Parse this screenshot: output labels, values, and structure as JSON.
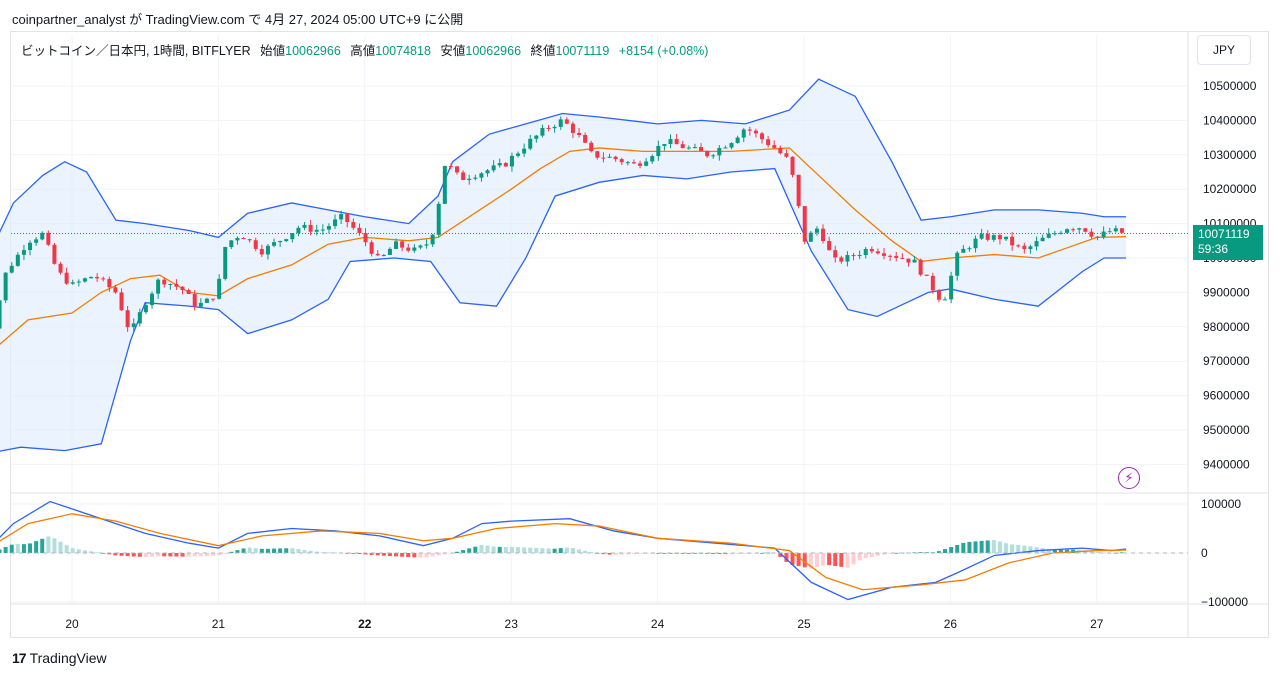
{
  "header": {
    "caption": "coinpartner_analyst が TradingView.com で 4月 27, 2024 05:00 UTC+9 に公開"
  },
  "legend": {
    "symbol": "ビットコイン／日本円, 1時間, BITFLYER",
    "open_label": "始値",
    "open": "10062966",
    "high_label": "高値",
    "high": "10074818",
    "low_label": "安値",
    "low": "10062966",
    "close_label": "終値",
    "close": "10071119",
    "change": "+8154 (+0.08%)"
  },
  "currency_button": "JPY",
  "price_label": {
    "price": "10071119",
    "countdown": "59:36"
  },
  "brand": {
    "logo": "17",
    "name": "TradingView"
  },
  "colors": {
    "up": "#089981",
    "down": "#f23645",
    "band": "#2962ff",
    "basis": "#f57c00",
    "band_fill": "#e3effd"
  },
  "icons": {
    "alert": "lightning-icon"
  },
  "chart_data": [
    {
      "type": "candlestick",
      "title": "ビットコイン／日本円, 1時間, BITFLYER",
      "x_tick_labels": [
        "20",
        "21",
        "22",
        "23",
        "24",
        "25",
        "26",
        "27"
      ],
      "x_tick_bold": [
        "22"
      ],
      "y_ticks": [
        9400000,
        9500000,
        9600000,
        9700000,
        9800000,
        9900000,
        10000000,
        10100000,
        10200000,
        10300000,
        10400000,
        10500000
      ],
      "ylim": [
        9350000,
        10560000
      ],
      "last_price": 10071119,
      "close_path": [
        [
          19.4,
          9580000
        ],
        [
          19.45,
          9780000
        ],
        [
          19.55,
          9960000
        ],
        [
          19.7,
          10050000
        ],
        [
          19.8,
          10070000
        ],
        [
          19.9,
          9960000
        ],
        [
          20.0,
          9920000
        ],
        [
          20.15,
          9950000
        ],
        [
          20.3,
          9900000
        ],
        [
          20.4,
          9780000
        ],
        [
          20.5,
          9870000
        ],
        [
          20.6,
          9940000
        ],
        [
          20.75,
          9910000
        ],
        [
          20.85,
          9860000
        ],
        [
          20.95,
          9880000
        ],
        [
          21.0,
          9920000
        ],
        [
          21.05,
          10040000
        ],
        [
          21.15,
          10070000
        ],
        [
          21.3,
          10020000
        ],
        [
          21.45,
          10060000
        ],
        [
          21.55,
          10090000
        ],
        [
          21.7,
          10080000
        ],
        [
          21.85,
          10120000
        ],
        [
          22.0,
          10050000
        ],
        [
          22.1,
          9990000
        ],
        [
          22.2,
          10040000
        ],
        [
          22.35,
          10020000
        ],
        [
          22.45,
          10050000
        ],
        [
          22.5,
          10150000
        ],
        [
          22.55,
          10280000
        ],
        [
          22.65,
          10230000
        ],
        [
          22.8,
          10250000
        ],
        [
          22.95,
          10270000
        ],
        [
          23.1,
          10330000
        ],
        [
          23.25,
          10380000
        ],
        [
          23.35,
          10400000
        ],
        [
          23.45,
          10360000
        ],
        [
          23.55,
          10300000
        ],
        [
          23.7,
          10290000
        ],
        [
          23.85,
          10270000
        ],
        [
          23.95,
          10300000
        ],
        [
          24.05,
          10340000
        ],
        [
          24.2,
          10320000
        ],
        [
          24.35,
          10300000
        ],
        [
          24.5,
          10340000
        ],
        [
          24.6,
          10380000
        ],
        [
          24.7,
          10350000
        ],
        [
          24.8,
          10320000
        ],
        [
          24.9,
          10280000
        ],
        [
          24.95,
          10180000
        ],
        [
          25.0,
          10050000
        ],
        [
          25.1,
          10090000
        ],
        [
          25.2,
          9990000
        ],
        [
          25.3,
          10000000
        ],
        [
          25.45,
          10030000
        ],
        [
          25.6,
          10010000
        ],
        [
          25.75,
          9990000
        ],
        [
          25.85,
          9930000
        ],
        [
          25.95,
          9870000
        ],
        [
          26.05,
          10010000
        ],
        [
          26.2,
          10060000
        ],
        [
          26.35,
          10060000
        ],
        [
          26.5,
          10020000
        ],
        [
          26.65,
          10060000
        ],
        [
          26.8,
          10090000
        ],
        [
          26.9,
          10090000
        ],
        [
          27.0,
          10060000
        ],
        [
          27.1,
          10080000
        ],
        [
          27.2,
          10071119
        ]
      ],
      "bollinger_basis": [
        [
          19.4,
          9710000
        ],
        [
          19.7,
          9820000
        ],
        [
          20.0,
          9840000
        ],
        [
          20.2,
          9900000
        ],
        [
          20.4,
          9940000
        ],
        [
          20.6,
          9950000
        ],
        [
          20.8,
          9900000
        ],
        [
          21.0,
          9890000
        ],
        [
          21.2,
          9940000
        ],
        [
          21.5,
          9980000
        ],
        [
          21.75,
          10040000
        ],
        [
          22.0,
          10060000
        ],
        [
          22.3,
          10050000
        ],
        [
          22.5,
          10060000
        ],
        [
          22.75,
          10130000
        ],
        [
          23.0,
          10200000
        ],
        [
          23.2,
          10260000
        ],
        [
          23.4,
          10310000
        ],
        [
          23.6,
          10320000
        ],
        [
          23.9,
          10310000
        ],
        [
          24.2,
          10310000
        ],
        [
          24.5,
          10310000
        ],
        [
          24.9,
          10320000
        ],
        [
          25.1,
          10240000
        ],
        [
          25.35,
          10140000
        ],
        [
          25.6,
          10050000
        ],
        [
          25.8,
          9990000
        ],
        [
          26.0,
          10000000
        ],
        [
          26.3,
          10010000
        ],
        [
          26.6,
          10000000
        ],
        [
          26.8,
          10030000
        ],
        [
          27.0,
          10060000
        ],
        [
          27.2,
          10062000
        ]
      ],
      "bollinger_upper": [
        [
          19.4,
          9980000
        ],
        [
          19.6,
          10160000
        ],
        [
          19.8,
          10240000
        ],
        [
          19.95,
          10280000
        ],
        [
          20.1,
          10250000
        ],
        [
          20.3,
          10110000
        ],
        [
          20.5,
          10100000
        ],
        [
          20.8,
          10080000
        ],
        [
          21.0,
          10060000
        ],
        [
          21.2,
          10130000
        ],
        [
          21.5,
          10160000
        ],
        [
          21.75,
          10140000
        ],
        [
          22.0,
          10120000
        ],
        [
          22.3,
          10100000
        ],
        [
          22.5,
          10180000
        ],
        [
          22.6,
          10280000
        ],
        [
          22.85,
          10360000
        ],
        [
          23.1,
          10390000
        ],
        [
          23.35,
          10420000
        ],
        [
          23.6,
          10410000
        ],
        [
          24.0,
          10390000
        ],
        [
          24.3,
          10400000
        ],
        [
          24.6,
          10390000
        ],
        [
          24.9,
          10430000
        ],
        [
          25.1,
          10520000
        ],
        [
          25.35,
          10470000
        ],
        [
          25.6,
          10280000
        ],
        [
          25.8,
          10110000
        ],
        [
          26.0,
          10120000
        ],
        [
          26.3,
          10140000
        ],
        [
          26.6,
          10140000
        ],
        [
          26.9,
          10130000
        ],
        [
          27.05,
          10120000
        ],
        [
          27.2,
          10120000
        ]
      ],
      "bollinger_lower": [
        [
          19.4,
          9430000
        ],
        [
          19.65,
          9450000
        ],
        [
          19.95,
          9440000
        ],
        [
          20.2,
          9460000
        ],
        [
          20.4,
          9760000
        ],
        [
          20.5,
          9870000
        ],
        [
          20.8,
          9860000
        ],
        [
          21.0,
          9850000
        ],
        [
          21.2,
          9780000
        ],
        [
          21.5,
          9820000
        ],
        [
          21.75,
          9880000
        ],
        [
          21.9,
          9990000
        ],
        [
          22.2,
          10000000
        ],
        [
          22.45,
          9990000
        ],
        [
          22.65,
          9870000
        ],
        [
          22.9,
          9860000
        ],
        [
          23.1,
          10000000
        ],
        [
          23.3,
          10180000
        ],
        [
          23.6,
          10220000
        ],
        [
          23.9,
          10240000
        ],
        [
          24.2,
          10230000
        ],
        [
          24.5,
          10250000
        ],
        [
          24.8,
          10260000
        ],
        [
          25.05,
          10020000
        ],
        [
          25.3,
          9850000
        ],
        [
          25.5,
          9830000
        ],
        [
          25.7,
          9870000
        ],
        [
          25.85,
          9900000
        ],
        [
          26.0,
          9910000
        ],
        [
          26.3,
          9880000
        ],
        [
          26.6,
          9860000
        ],
        [
          26.9,
          9960000
        ],
        [
          27.05,
          10000000
        ],
        [
          27.2,
          10000000
        ]
      ],
      "grid": true,
      "y_axis_position": "right"
    },
    {
      "type": "macd",
      "y_ticks": [
        100000,
        0,
        -100000
      ],
      "y_tick_labels": [
        "100000",
        "0",
        "−100000"
      ],
      "ylim": [
        -110000,
        115000
      ],
      "macd_line": [
        [
          19.4,
          0
        ],
        [
          19.6,
          60000
        ],
        [
          19.85,
          105000
        ],
        [
          20.0,
          90000
        ],
        [
          20.2,
          70000
        ],
        [
          20.5,
          40000
        ],
        [
          20.8,
          20000
        ],
        [
          21.0,
          10000
        ],
        [
          21.2,
          40000
        ],
        [
          21.5,
          50000
        ],
        [
          21.8,
          45000
        ],
        [
          22.1,
          35000
        ],
        [
          22.4,
          15000
        ],
        [
          22.6,
          30000
        ],
        [
          22.8,
          60000
        ],
        [
          23.0,
          65000
        ],
        [
          23.4,
          70000
        ],
        [
          23.7,
          45000
        ],
        [
          24.0,
          30000
        ],
        [
          24.4,
          20000
        ],
        [
          24.8,
          10000
        ],
        [
          25.05,
          -60000
        ],
        [
          25.3,
          -95000
        ],
        [
          25.6,
          -70000
        ],
        [
          25.9,
          -60000
        ],
        [
          26.05,
          -40000
        ],
        [
          26.3,
          -5000
        ],
        [
          26.6,
          5000
        ],
        [
          26.9,
          10000
        ],
        [
          27.1,
          5000
        ],
        [
          27.2,
          8000
        ]
      ],
      "signal_line": [
        [
          19.4,
          5000
        ],
        [
          19.7,
          60000
        ],
        [
          20.0,
          80000
        ],
        [
          20.3,
          65000
        ],
        [
          20.6,
          40000
        ],
        [
          21.0,
          15000
        ],
        [
          21.3,
          35000
        ],
        [
          21.7,
          45000
        ],
        [
          22.1,
          40000
        ],
        [
          22.4,
          25000
        ],
        [
          22.6,
          30000
        ],
        [
          22.9,
          50000
        ],
        [
          23.3,
          60000
        ],
        [
          23.6,
          55000
        ],
        [
          24.0,
          30000
        ],
        [
          24.5,
          20000
        ],
        [
          24.9,
          5000
        ],
        [
          25.15,
          -50000
        ],
        [
          25.4,
          -75000
        ],
        [
          25.8,
          -65000
        ],
        [
          26.1,
          -55000
        ],
        [
          26.4,
          -20000
        ],
        [
          26.7,
          0
        ],
        [
          27.0,
          5000
        ],
        [
          27.2,
          6000
        ]
      ],
      "histogram_color_rule": "positive: teal; negative: red",
      "grid": true
    }
  ]
}
